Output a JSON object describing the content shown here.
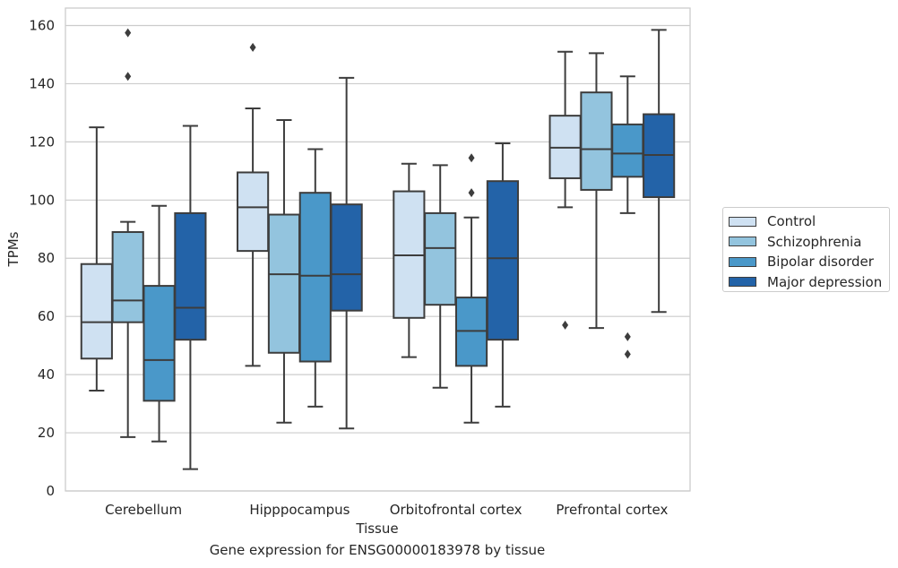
{
  "chart_data": {
    "type": "box",
    "caption": "Gene expression for ENSG00000183978 by tissue",
    "xlabel": "Tissue",
    "ylabel": "TPMs",
    "ylim": [
      0,
      166
    ],
    "yticks": [
      0,
      20,
      40,
      60,
      80,
      100,
      120,
      140,
      160
    ],
    "grid": true,
    "legend_position": "right",
    "categories": [
      "Cerebellum",
      "Hipppocampus",
      "Orbitofrontal cortex",
      "Prefrontal cortex"
    ],
    "series": [
      {
        "name": "Control",
        "color": "#cfe1f2",
        "boxes": [
          {
            "whisker_low": 34.5,
            "q1": 45.5,
            "median": 58,
            "q3": 78,
            "whisker_high": 125,
            "outliers": []
          },
          {
            "whisker_low": 43,
            "q1": 82.5,
            "median": 97.5,
            "q3": 109.5,
            "whisker_high": 131.5,
            "outliers": [
              152.5
            ]
          },
          {
            "whisker_low": 46,
            "q1": 59.5,
            "median": 81,
            "q3": 103,
            "whisker_high": 112.5,
            "outliers": []
          },
          {
            "whisker_low": 97.5,
            "q1": 107.5,
            "median": 118,
            "q3": 129,
            "whisker_high": 151,
            "outliers": [
              57
            ]
          }
        ]
      },
      {
        "name": "Schizophrenia",
        "color": "#93c4de",
        "boxes": [
          {
            "whisker_low": 18.5,
            "q1": 58,
            "median": 65.5,
            "q3": 89,
            "whisker_high": 92.5,
            "outliers": [
              157.5,
              142.5
            ]
          },
          {
            "whisker_low": 23.5,
            "q1": 47.5,
            "median": 74.5,
            "q3": 95,
            "whisker_high": 127.5,
            "outliers": []
          },
          {
            "whisker_low": 35.5,
            "q1": 64,
            "median": 83.5,
            "q3": 95.5,
            "whisker_high": 112,
            "outliers": []
          },
          {
            "whisker_low": 56,
            "q1": 103.5,
            "median": 117.5,
            "q3": 137,
            "whisker_high": 150.5,
            "outliers": []
          }
        ]
      },
      {
        "name": "Bipolar disorder",
        "color": "#4a98c9",
        "boxes": [
          {
            "whisker_low": 17,
            "q1": 31,
            "median": 45,
            "q3": 70.5,
            "whisker_high": 98,
            "outliers": []
          },
          {
            "whisker_low": 29,
            "q1": 44.5,
            "median": 74,
            "q3": 102.5,
            "whisker_high": 117.5,
            "outliers": []
          },
          {
            "whisker_low": 23.5,
            "q1": 43,
            "median": 55,
            "q3": 66.5,
            "whisker_high": 94,
            "outliers": [
              114.5,
              102.5
            ]
          },
          {
            "whisker_low": 95.5,
            "q1": 108,
            "median": 116,
            "q3": 126,
            "whisker_high": 142.5,
            "outliers": [
              53,
              47
            ]
          }
        ]
      },
      {
        "name": "Major depression",
        "color": "#2363a8",
        "boxes": [
          {
            "whisker_low": 7.5,
            "q1": 52,
            "median": 63,
            "q3": 95.5,
            "whisker_high": 125.5,
            "outliers": []
          },
          {
            "whisker_low": 21.5,
            "q1": 62,
            "median": 74.5,
            "q3": 98.5,
            "whisker_high": 142,
            "outliers": []
          },
          {
            "whisker_low": 29,
            "q1": 52,
            "median": 80,
            "q3": 106.5,
            "whisker_high": 119.5,
            "outliers": []
          },
          {
            "whisker_low": 61.5,
            "q1": 101,
            "median": 115.5,
            "q3": 129.5,
            "whisker_high": 158.5,
            "outliers": []
          }
        ]
      }
    ]
  }
}
